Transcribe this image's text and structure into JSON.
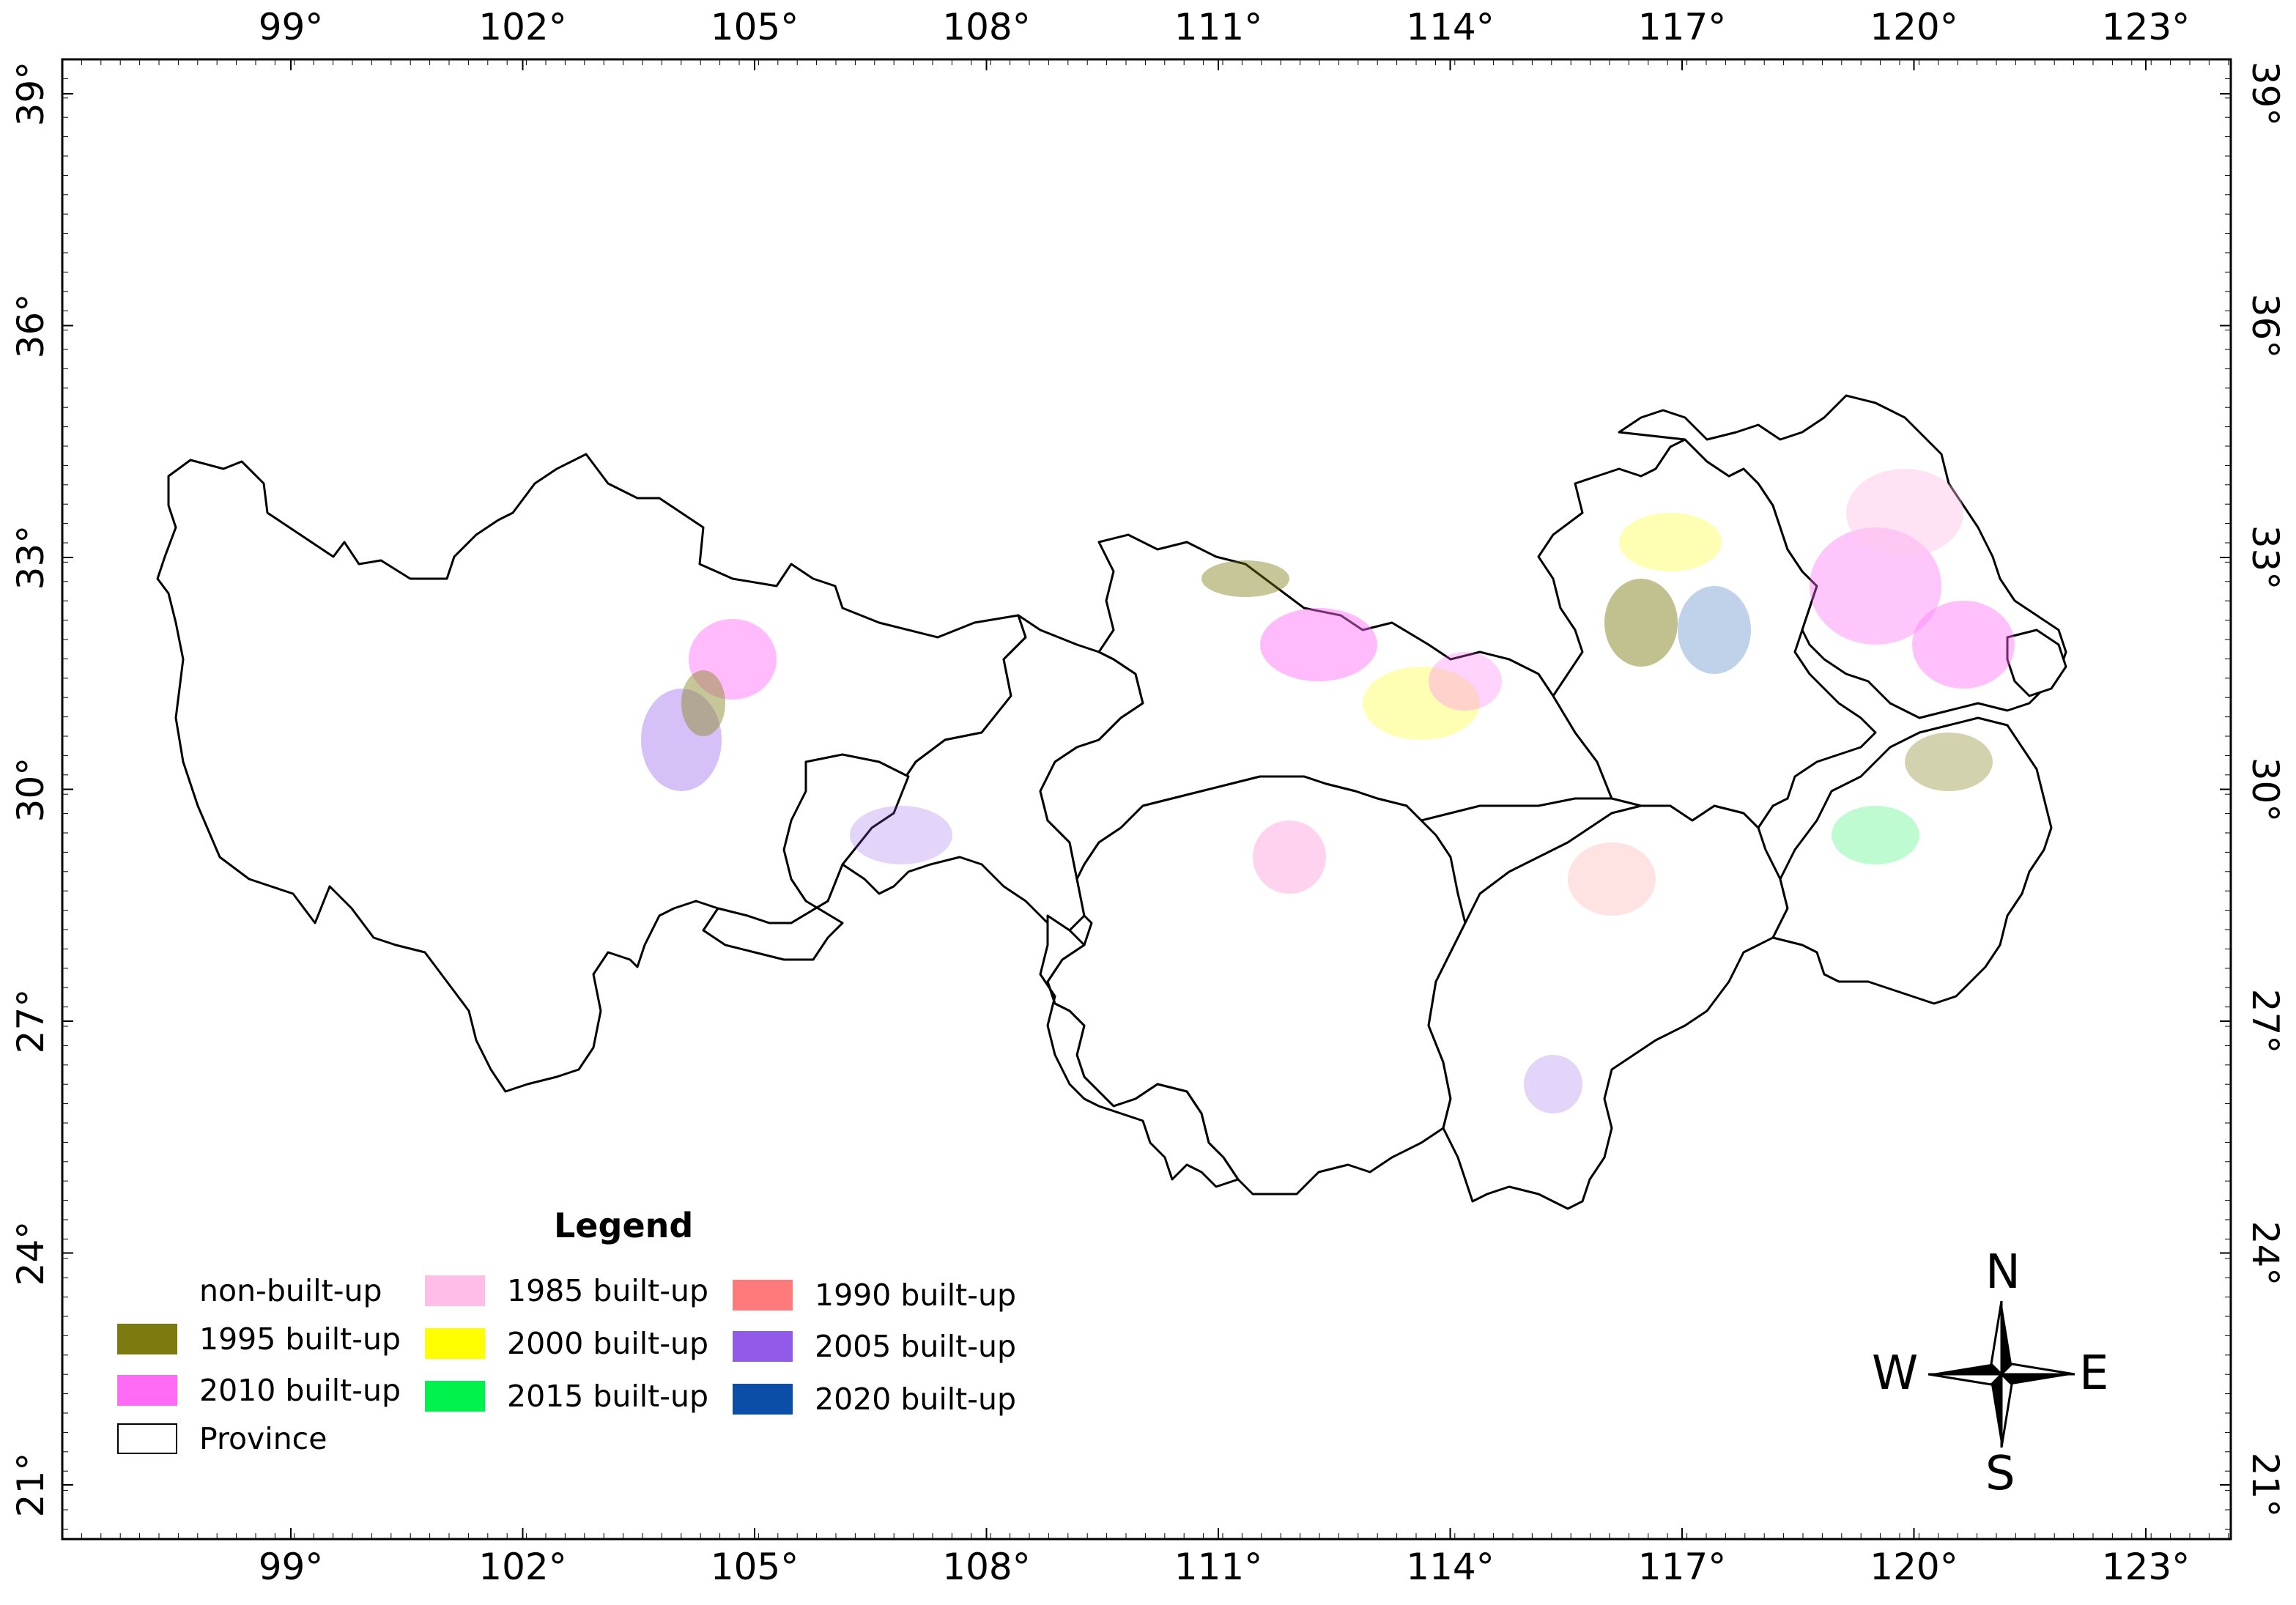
{
  "axes": {
    "x_labels": [
      "99°",
      "102°",
      "105°",
      "108°",
      "111°",
      "114°",
      "117°",
      "120°",
      "123°"
    ],
    "y_labels": [
      "39°",
      "36°",
      "33°",
      "30°",
      "27°",
      "24°",
      "21°"
    ]
  },
  "legend": {
    "title": "Legend",
    "items": [
      {
        "label": "non-built-up",
        "color": "#ffffff",
        "border": false
      },
      {
        "label": "1985 built-up",
        "color": "#ffbde8",
        "border": false
      },
      {
        "label": "1990 built-up",
        "color": "#ff7b7b",
        "border": false
      },
      {
        "label": "1995 built-up",
        "color": "#7a7a0e",
        "border": false
      },
      {
        "label": "2000 built-up",
        "color": "#ffff00",
        "border": false
      },
      {
        "label": "2005 built-up",
        "color": "#925ae8",
        "border": false
      },
      {
        "label": "2010 built-up",
        "color": "#ff6bf5",
        "border": false
      },
      {
        "label": "2015 built-up",
        "color": "#00f04c",
        "border": false
      },
      {
        "label": "2020 built-up",
        "color": "#0a4ea8",
        "border": false
      },
      {
        "label": "Province",
        "color": "#ffffff",
        "border": true
      }
    ]
  },
  "compass": {
    "n": "N",
    "s": "S",
    "e": "E",
    "w": "W"
  }
}
